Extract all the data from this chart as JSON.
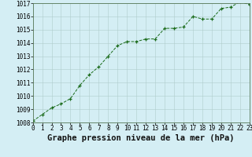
{
  "x": [
    0,
    1,
    2,
    3,
    4,
    5,
    6,
    7,
    8,
    9,
    10,
    11,
    12,
    13,
    14,
    15,
    16,
    17,
    18,
    19,
    20,
    21,
    22,
    23
  ],
  "y": [
    1008.1,
    1008.6,
    1009.1,
    1009.4,
    1009.8,
    1010.8,
    1011.6,
    1012.2,
    1013.0,
    1013.8,
    1014.1,
    1014.1,
    1014.3,
    1014.3,
    1015.1,
    1015.1,
    1015.2,
    1016.0,
    1015.8,
    1015.8,
    1016.6,
    1016.7,
    1017.1,
    1016.9
  ],
  "line_color": "#1a6b1a",
  "marker_color": "#1a6b1a",
  "plot_bg_color": "#d4eef4",
  "fig_bg_color": "#d4eef4",
  "grid_color": "#b0cccc",
  "xlabel": "Graphe pression niveau de la mer (hPa)",
  "ylim_min": 1008,
  "ylim_max": 1017,
  "xlim_min": 0,
  "xlim_max": 23,
  "tick_fontsize": 5.5,
  "label_fontsize": 7.5
}
